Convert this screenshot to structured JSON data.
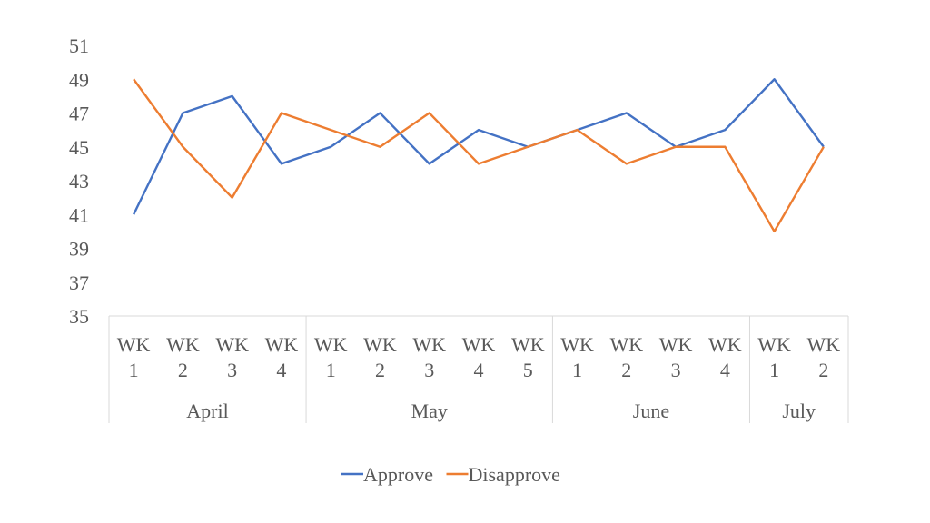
{
  "chart_data": {
    "type": "line",
    "groups": [
      {
        "name": "April",
        "categories": [
          [
            "WK",
            "1"
          ],
          [
            "WK",
            "2"
          ],
          [
            "WK",
            "3"
          ],
          [
            "WK",
            "4"
          ]
        ]
      },
      {
        "name": "May",
        "categories": [
          [
            "WK",
            "1"
          ],
          [
            "WK",
            "2"
          ],
          [
            "WK",
            "3"
          ],
          [
            "WK",
            "4"
          ],
          [
            "WK",
            "5"
          ]
        ]
      },
      {
        "name": "June",
        "categories": [
          [
            "WK",
            "1"
          ],
          [
            "WK",
            "2"
          ],
          [
            "WK",
            "3"
          ],
          [
            "WK",
            "4"
          ]
        ]
      },
      {
        "name": "July",
        "categories": [
          [
            "WK",
            "1"
          ],
          [
            "WK",
            "2"
          ]
        ]
      }
    ],
    "series": [
      {
        "name": "Approve",
        "color": "#4472C4",
        "values": [
          41,
          47,
          48,
          44,
          45,
          47,
          44,
          46,
          45,
          46,
          47,
          45,
          46,
          49,
          45
        ]
      },
      {
        "name": "Disapprove",
        "color": "#ED7D31",
        "values": [
          49,
          45,
          42,
          47,
          46,
          45,
          47,
          44,
          45,
          46,
          44,
          45,
          45,
          40,
          45
        ]
      }
    ],
    "y_ticks": [
      "35",
      "37",
      "39",
      "41",
      "43",
      "45",
      "47",
      "49",
      "51"
    ],
    "ylim": [
      35,
      51
    ],
    "grid": false,
    "legend_position": "bottom",
    "title": "",
    "xlabel": "",
    "ylabel": ""
  }
}
